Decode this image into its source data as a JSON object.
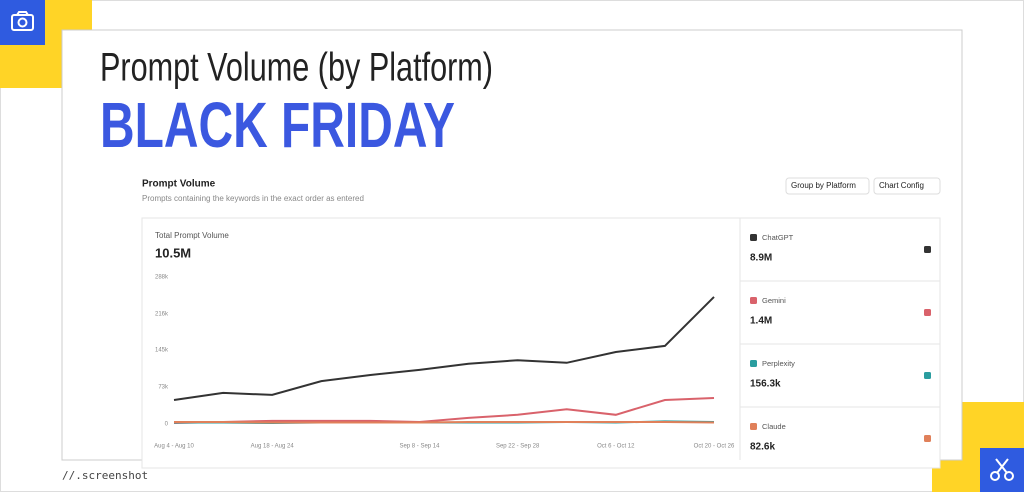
{
  "header": {
    "title": "Prompt Volume (by Platform)",
    "subtitle": "BLACK FRIDAY"
  },
  "panel": {
    "title": "Prompt Volume",
    "description": "Prompts containing the keywords in the exact order as entered",
    "buttons": [
      "Group by Platform",
      "Chart Config"
    ]
  },
  "chart_data": {
    "type": "line",
    "title": "Total Prompt Volume",
    "total": "10.5M",
    "categories": [
      "Aug 4 - Aug 10",
      null,
      "Aug 18 - Aug 24",
      null,
      null,
      "Sep 8 - Sep 14",
      null,
      "Sep 22 - Sep 28",
      null,
      "Oct 6 - Oct 12",
      null,
      "Oct 20 - Oct 26"
    ],
    "ylim": [
      0,
      288000
    ],
    "yticks": [
      0,
      {
        "value": 73000,
        "label": "73k"
      },
      {
        "value": 145000,
        "label": "145k"
      },
      {
        "value": 216000,
        "label": "216k"
      },
      {
        "value": 288000,
        "label": "288k"
      }
    ],
    "grid": false,
    "series": [
      {
        "name": "ChatGPT",
        "color": "#333333",
        "total": "8.9M",
        "values": [
          47000,
          61000,
          57000,
          84000,
          96000,
          106000,
          118000,
          125000,
          120000,
          141000,
          153000,
          249000
        ]
      },
      {
        "name": "Gemini",
        "color": "#d9626b",
        "total": "1.4M",
        "values": [
          2000,
          4000,
          6000,
          6000,
          6000,
          4000,
          12000,
          18000,
          29000,
          18000,
          47000,
          51000
        ]
      },
      {
        "name": "Perplexity",
        "color": "#2a9d9f",
        "total": "156.3k",
        "values": [
          3000,
          3000,
          2000,
          3000,
          3000,
          3000,
          3000,
          3000,
          4000,
          3000,
          5000,
          4000
        ]
      },
      {
        "name": "Claude",
        "color": "#e0805a",
        "total": "82.6k",
        "values": [
          4000,
          4000,
          3000,
          3000,
          3000,
          3000,
          4000,
          4000,
          4000,
          4000,
          4000,
          3000
        ]
      }
    ]
  },
  "footer": "//.screenshot"
}
